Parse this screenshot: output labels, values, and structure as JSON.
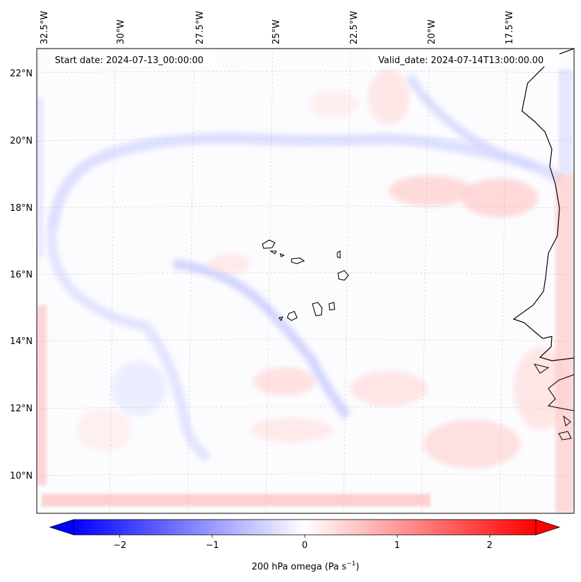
{
  "map": {
    "start_date_text": "Start date: 2024-07-13_00:00:00",
    "valid_date_text": "Valid_date: 2024-07-14T13:00:00.00",
    "lon_labels": [
      "32.5°W",
      "30°W",
      "27.5°W",
      "25°W",
      "22.5°W",
      "20°W",
      "17.5°W"
    ],
    "lat_labels": [
      "22°N",
      "20°N",
      "18°N",
      "16°N",
      "14°N",
      "12°N",
      "10°N"
    ],
    "colorbar": {
      "label_prefix": "200 hPa omega (Pa s",
      "label_exponent": "−1",
      "label_suffix": ")",
      "ticks": [
        "−2",
        "−1",
        "0",
        "1",
        "2"
      ],
      "tick_values": [
        -2,
        -1,
        0,
        1,
        2
      ],
      "range": [
        -2.5,
        2.5
      ],
      "colormap": "bwr",
      "color_min": "#0000ff",
      "color_mid": "#ffffff",
      "color_max": "#ff0000"
    }
  }
}
